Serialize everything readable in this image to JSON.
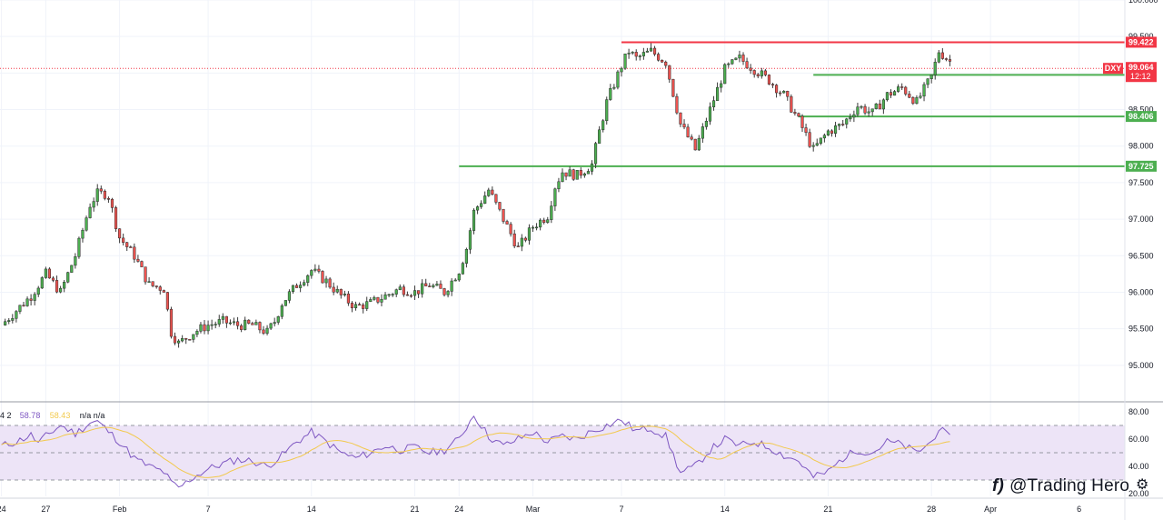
{
  "chart_data": [
    {
      "type": "candlestick",
      "symbol": "DXY",
      "y_ticks": [
        "100.000",
        "99.500",
        "99.000",
        "98.500",
        "98.000",
        "97.500",
        "97.000",
        "96.500",
        "96.000",
        "95.500",
        "95.000"
      ],
      "ylim": [
        94.55,
        100.0
      ],
      "x_ticks": [
        {
          "label": "24",
          "day": 0
        },
        {
          "label": "27",
          "day": 3
        },
        {
          "label": "Feb",
          "day": 8
        },
        {
          "label": "7",
          "day": 14
        },
        {
          "label": "14",
          "day": 21
        },
        {
          "label": "21",
          "day": 28
        },
        {
          "label": "24",
          "day": 31
        },
        {
          "label": "Mar",
          "day": 36
        },
        {
          "label": "7",
          "day": 42
        },
        {
          "label": "14",
          "day": 49
        },
        {
          "label": "21",
          "day": 56
        },
        {
          "label": "28",
          "day": 63
        },
        {
          "label": "Apr",
          "day": 67
        },
        {
          "label": "6",
          "day": 73
        }
      ],
      "xlim_days": [
        -0.1,
        76.1
      ],
      "price_path": [
        [
          0,
          95.55
        ],
        [
          2,
          95.95
        ],
        [
          3,
          96.25
        ],
        [
          4,
          96.0
        ],
        [
          5,
          96.5
        ],
        [
          6,
          97.2
        ],
        [
          6.5,
          97.35
        ],
        [
          7.2,
          97.35
        ],
        [
          8,
          96.75
        ],
        [
          9,
          96.5
        ],
        [
          10,
          96.1
        ],
        [
          11,
          96.05
        ],
        [
          11.5,
          95.45
        ],
        [
          12,
          95.3
        ],
        [
          13,
          95.45
        ],
        [
          14,
          95.55
        ],
        [
          15,
          95.6
        ],
        [
          16,
          95.55
        ],
        [
          17,
          95.55
        ],
        [
          18,
          95.45
        ],
        [
          18.5,
          95.6
        ],
        [
          19,
          95.85
        ],
        [
          20,
          96.1
        ],
        [
          21,
          96.3
        ],
        [
          22,
          96.15
        ],
        [
          23,
          95.95
        ],
        [
          24,
          95.8
        ],
        [
          25,
          95.85
        ],
        [
          26,
          95.95
        ],
        [
          27,
          96.05
        ],
        [
          28,
          96.0
        ],
        [
          29,
          96.1
        ],
        [
          30,
          96.0
        ],
        [
          31,
          96.3
        ],
        [
          31.5,
          96.6
        ],
        [
          32,
          97.1
        ],
        [
          33,
          97.4
        ],
        [
          34,
          97.0
        ],
        [
          35,
          96.6
        ],
        [
          36,
          96.9
        ],
        [
          37,
          97.05
        ],
        [
          37.5,
          97.45
        ],
        [
          38,
          97.65
        ],
        [
          39,
          97.6
        ],
        [
          40,
          97.75
        ],
        [
          40.5,
          98.2
        ],
        [
          41,
          98.6
        ],
        [
          42,
          99.1
        ],
        [
          42.5,
          99.3
        ],
        [
          43,
          99.2
        ],
        [
          44,
          99.3
        ],
        [
          45,
          99.15
        ],
        [
          46,
          98.3
        ],
        [
          47,
          97.95
        ],
        [
          48,
          98.5
        ],
        [
          49,
          99.05
        ],
        [
          50,
          99.2
        ],
        [
          51,
          99.05
        ],
        [
          52,
          98.9
        ],
        [
          53,
          98.7
        ],
        [
          54,
          98.35
        ],
        [
          55,
          97.95
        ],
        [
          56,
          98.2
        ],
        [
          57,
          98.3
        ],
        [
          58,
          98.55
        ],
        [
          59,
          98.45
        ],
        [
          60,
          98.7
        ],
        [
          61,
          98.8
        ],
        [
          62,
          98.6
        ],
        [
          63,
          98.95
        ],
        [
          63.5,
          99.3
        ],
        [
          64.3,
          99.15
        ]
      ],
      "candles_seed": 7,
      "horizontal_lines": [
        {
          "label": "99.422",
          "value": 99.422,
          "color": "#f23645",
          "day_from": 42
        },
        {
          "label": "98.975",
          "value": 98.975,
          "color": "#4caf50",
          "day_from": 55
        },
        {
          "label": "98.406",
          "value": 98.406,
          "color": "#4caf50",
          "day_from": 54
        },
        {
          "label": "97.725",
          "value": 97.725,
          "color": "#4caf50",
          "day_from": 31
        }
      ],
      "last_price": {
        "symbol": "DXY",
        "value": "99.064",
        "value_num": 99.064,
        "countdown": "12:12",
        "color": "#f23645"
      },
      "colors": {
        "up": "#4caf50",
        "down": "#ef5350",
        "wick": "#555555"
      }
    },
    {
      "type": "line",
      "indicator": "RSI",
      "legend": {
        "params": "4 2",
        "rsi_value": "58.78",
        "ma_value": "58.43",
        "extra": "n/a  n/a"
      },
      "y_ticks": [
        "80.00",
        "60.00",
        "40.00",
        "20.00"
      ],
      "ylim": [
        18,
        86
      ],
      "band": [
        30,
        70
      ],
      "midline": 50,
      "rsi_path": [
        [
          0,
          55
        ],
        [
          1,
          58
        ],
        [
          2,
          63
        ],
        [
          2.5,
          57
        ],
        [
          3,
          62
        ],
        [
          4,
          70
        ],
        [
          5,
          64
        ],
        [
          6,
          72
        ],
        [
          6.5,
          73
        ],
        [
          7,
          68
        ],
        [
          8,
          58
        ],
        [
          9,
          46
        ],
        [
          10,
          40
        ],
        [
          11,
          36
        ],
        [
          11.5,
          28
        ],
        [
          12,
          24
        ],
        [
          13,
          32
        ],
        [
          14,
          38
        ],
        [
          15,
          42
        ],
        [
          16,
          45
        ],
        [
          17,
          44
        ],
        [
          18,
          40
        ],
        [
          19,
          48
        ],
        [
          20,
          58
        ],
        [
          21,
          65
        ],
        [
          22,
          58
        ],
        [
          23,
          50
        ],
        [
          24,
          46
        ],
        [
          25,
          50
        ],
        [
          26,
          55
        ],
        [
          27,
          52
        ],
        [
          28,
          54
        ],
        [
          29,
          50
        ],
        [
          30,
          52
        ],
        [
          31,
          60
        ],
        [
          32,
          78
        ],
        [
          33,
          62
        ],
        [
          34,
          55
        ],
        [
          35,
          60
        ],
        [
          36,
          65
        ],
        [
          37,
          58
        ],
        [
          38,
          62
        ],
        [
          39,
          60
        ],
        [
          40,
          66
        ],
        [
          41,
          70
        ],
        [
          42,
          74
        ],
        [
          43,
          66
        ],
        [
          44,
          68
        ],
        [
          45,
          62
        ],
        [
          46,
          35
        ],
        [
          47,
          40
        ],
        [
          48,
          52
        ],
        [
          49,
          60
        ],
        [
          50,
          55
        ],
        [
          51,
          58
        ],
        [
          52,
          54
        ],
        [
          53,
          48
        ],
        [
          54,
          44
        ],
        [
          55,
          32
        ],
        [
          56,
          36
        ],
        [
          57,
          46
        ],
        [
          58,
          52
        ],
        [
          59,
          50
        ],
        [
          60,
          58
        ],
        [
          61,
          56
        ],
        [
          62,
          50
        ],
        [
          63,
          58
        ],
        [
          63.5,
          68
        ],
        [
          64.3,
          60
        ]
      ],
      "ma_period": 14,
      "colors": {
        "rsi": "#7e57c2",
        "ma": "#f2c94c",
        "band_fill": "#ede4f7"
      }
    }
  ],
  "watermark": {
    "icon": "f)",
    "text": "@Trading Hero"
  },
  "settings_icon": "gear-icon"
}
